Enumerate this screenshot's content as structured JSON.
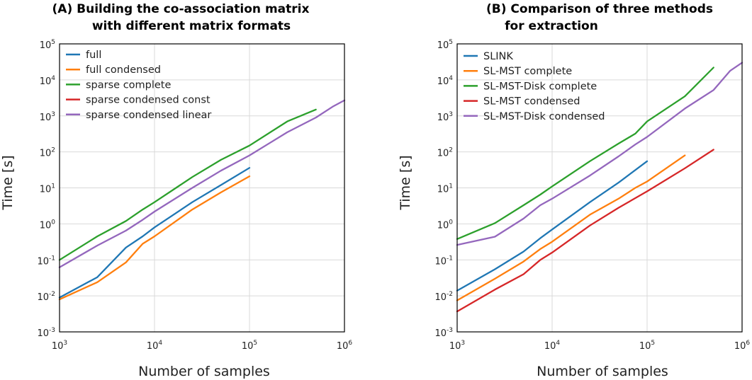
{
  "chart_data": [
    {
      "type": "line",
      "title_lines": [
        "(A) Building the co-association matrix",
        "with different matrix formats"
      ],
      "xlabel": "Number of samples",
      "ylabel": "Time [s]",
      "xscale": "log",
      "yscale": "log",
      "xlim": [
        1000,
        1000000
      ],
      "ylim": [
        0.001,
        100000
      ],
      "x_tick_labels": [
        {
          "base": "10",
          "exp": "3"
        },
        {
          "base": "10",
          "exp": "4"
        },
        {
          "base": "10",
          "exp": "5"
        },
        {
          "base": "10",
          "exp": "6"
        }
      ],
      "y_tick_labels": [
        {
          "base": "10",
          "exp": "-3"
        },
        {
          "base": "10",
          "exp": "-2"
        },
        {
          "base": "10",
          "exp": "-1"
        },
        {
          "base": "10",
          "exp": "0"
        },
        {
          "base": "10",
          "exp": "1"
        },
        {
          "base": "10",
          "exp": "2"
        },
        {
          "base": "10",
          "exp": "3"
        },
        {
          "base": "10",
          "exp": "4"
        },
        {
          "base": "10",
          "exp": "5"
        }
      ],
      "grid": true,
      "legend_position": "top-left",
      "series": [
        {
          "name": "full",
          "color": "#1f77b4",
          "x": [
            1000,
            2500,
            5000,
            7500,
            10000,
            25000,
            50000,
            100000
          ],
          "y": [
            0.009,
            0.033,
            0.22,
            0.45,
            0.8,
            4.0,
            12,
            36
          ]
        },
        {
          "name": "full condensed",
          "color": "#ff7f0e",
          "x": [
            1000,
            2500,
            5000,
            7500,
            10000,
            25000,
            50000,
            100000
          ],
          "y": [
            0.008,
            0.024,
            0.085,
            0.28,
            0.45,
            2.5,
            7.5,
            21
          ]
        },
        {
          "name": "sparse complete",
          "color": "#2ca02c",
          "x": [
            1000,
            2500,
            5000,
            7500,
            10000,
            25000,
            50000,
            100000,
            250000,
            500000
          ],
          "y": [
            0.1,
            0.45,
            1.2,
            2.5,
            4.0,
            20,
            60,
            150,
            700,
            1500
          ]
        },
        {
          "name": "sparse condensed const",
          "color": "#d62728",
          "x": [],
          "y": []
        },
        {
          "name": "sparse condensed linear",
          "color": "#9467bd",
          "x": [
            1000,
            2500,
            5000,
            7500,
            10000,
            25000,
            50000,
            100000,
            250000,
            500000,
            750000,
            1000000
          ],
          "y": [
            0.062,
            0.25,
            0.65,
            1.3,
            2.2,
            10,
            30,
            80,
            350,
            900,
            1800,
            2700
          ]
        }
      ]
    },
    {
      "type": "line",
      "title_lines": [
        "(B) Comparison of three methods",
        "for extraction"
      ],
      "xlabel": "Number of samples",
      "ylabel": "Time [s]",
      "xscale": "log",
      "yscale": "log",
      "xlim": [
        1000,
        1000000
      ],
      "ylim": [
        0.001,
        100000
      ],
      "x_tick_labels": [
        {
          "base": "10",
          "exp": "3"
        },
        {
          "base": "10",
          "exp": "4"
        },
        {
          "base": "10",
          "exp": "5"
        },
        {
          "base": "10",
          "exp": "6"
        }
      ],
      "y_tick_labels": [
        {
          "base": "10",
          "exp": "-3"
        },
        {
          "base": "10",
          "exp": "-2"
        },
        {
          "base": "10",
          "exp": "-1"
        },
        {
          "base": "10",
          "exp": "0"
        },
        {
          "base": "10",
          "exp": "1"
        },
        {
          "base": "10",
          "exp": "2"
        },
        {
          "base": "10",
          "exp": "3"
        },
        {
          "base": "10",
          "exp": "4"
        },
        {
          "base": "10",
          "exp": "5"
        }
      ],
      "grid": true,
      "legend_position": "top-left",
      "series": [
        {
          "name": "SLINK",
          "color": "#1f77b4",
          "x": [
            1000,
            2500,
            5000,
            7500,
            10000,
            25000,
            50000,
            100000
          ],
          "y": [
            0.014,
            0.055,
            0.17,
            0.4,
            0.7,
            4.0,
            14,
            55
          ]
        },
        {
          "name": "SL-MST complete",
          "color": "#ff7f0e",
          "x": [
            1000,
            2500,
            5000,
            7500,
            10000,
            25000,
            50000,
            75000,
            100000,
            250000
          ],
          "y": [
            0.0075,
            0.03,
            0.09,
            0.2,
            0.32,
            1.8,
            5.0,
            10,
            15,
            80
          ]
        },
        {
          "name": "SL-MST-Disk complete",
          "color": "#2ca02c",
          "x": [
            1000,
            2500,
            5000,
            7500,
            10000,
            25000,
            50000,
            75000,
            100000,
            250000,
            500000
          ],
          "y": [
            0.38,
            1.05,
            3.3,
            6.5,
            11,
            55,
            170,
            320,
            700,
            3500,
            22000
          ]
        },
        {
          "name": "SL-MST condensed",
          "color": "#d62728",
          "x": [
            1000,
            2500,
            5000,
            7500,
            10000,
            25000,
            50000,
            100000,
            250000,
            500000
          ],
          "y": [
            0.0037,
            0.015,
            0.04,
            0.1,
            0.16,
            0.9,
            2.8,
            8.0,
            35,
            115
          ]
        },
        {
          "name": "SL-MST-Disk condensed",
          "color": "#9467bd",
          "x": [
            1000,
            2500,
            5000,
            7500,
            10000,
            25000,
            50000,
            75000,
            100000,
            250000,
            500000,
            750000,
            1000000
          ],
          "y": [
            0.26,
            0.44,
            1.4,
            3.3,
            5.0,
            22,
            75,
            160,
            260,
            1600,
            5200,
            18000,
            30000
          ]
        }
      ]
    }
  ]
}
